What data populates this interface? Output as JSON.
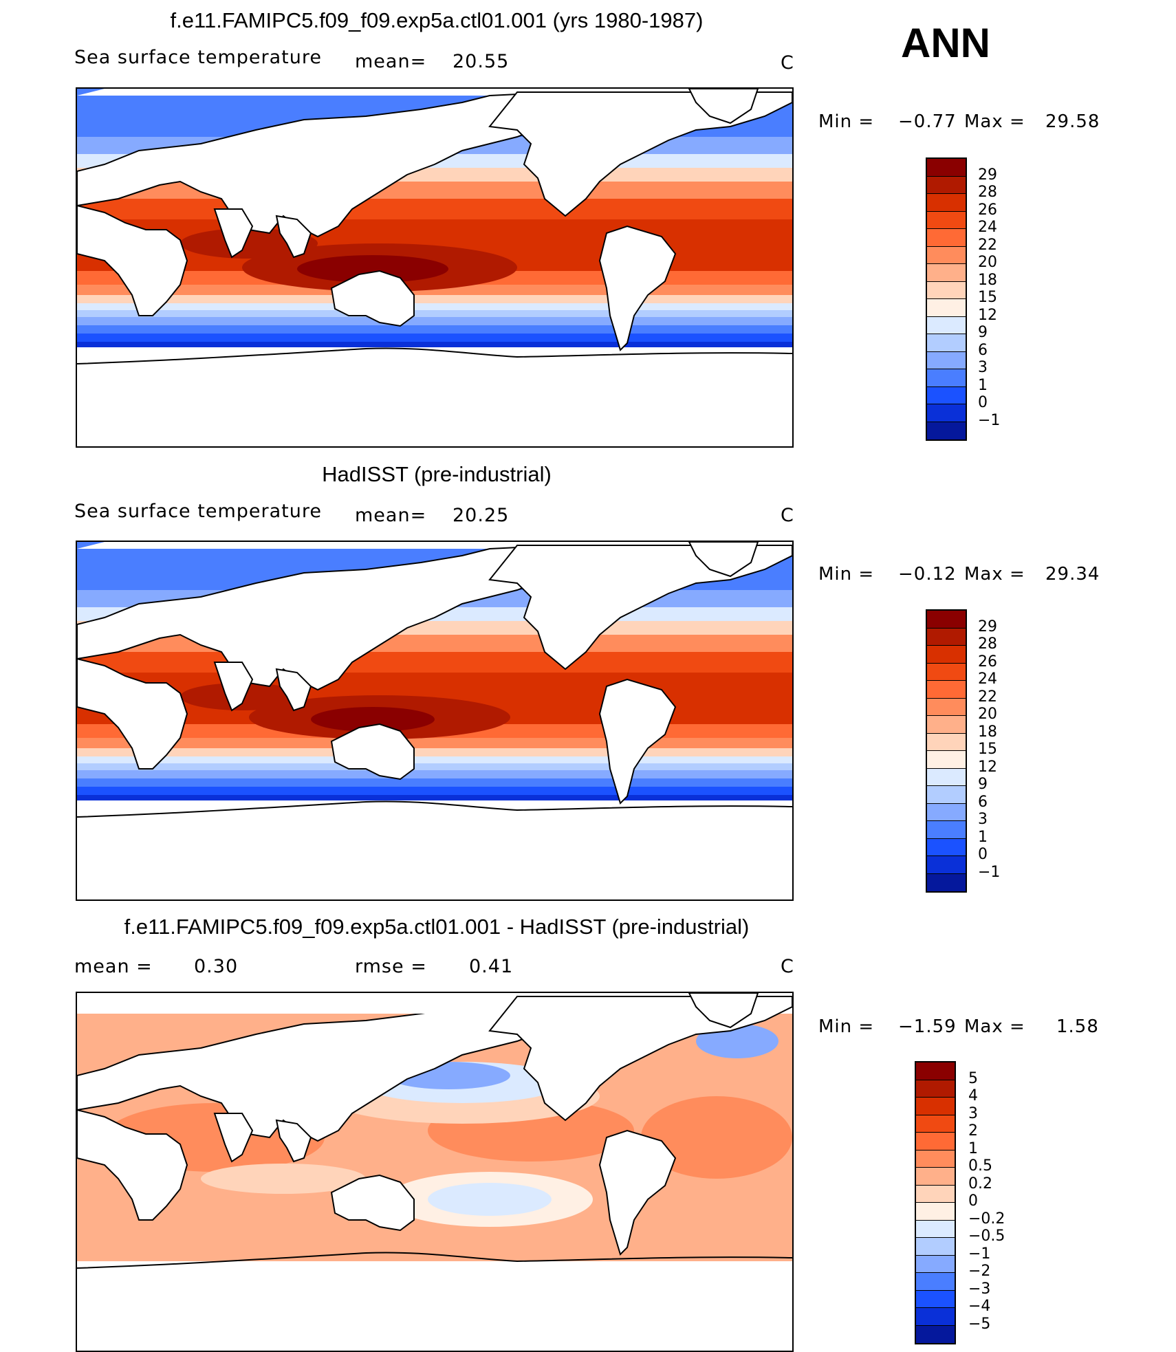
{
  "header": {
    "season": "ANN",
    "units": "C"
  },
  "panels": [
    {
      "title": "f.e11.FAMIPC5.f09_f09.exp5a.ctl01.001 (yrs 1980-1987)",
      "variable": "Sea surface temperature",
      "stat_label": "mean=",
      "stat_value": "20.55",
      "min_label": "Min =",
      "min_value": "−0.77",
      "max_label": "Max =",
      "max_value": "29.58",
      "levels": [
        "29",
        "28",
        "26",
        "24",
        "22",
        "20",
        "18",
        "15",
        "12",
        "9",
        "6",
        "3",
        "1",
        "0",
        "−1"
      ]
    },
    {
      "title": "HadISST (pre-industrial)",
      "variable": "Sea surface temperature",
      "stat_label": "mean=",
      "stat_value": "20.25",
      "min_label": "Min =",
      "min_value": "−0.12",
      "max_label": "Max =",
      "max_value": "29.34",
      "levels": [
        "29",
        "28",
        "26",
        "24",
        "22",
        "20",
        "18",
        "15",
        "12",
        "9",
        "6",
        "3",
        "1",
        "0",
        "−1"
      ]
    },
    {
      "title": "f.e11.FAMIPC5.f09_f09.exp5a.ctl01.001 - HadISST (pre-industrial)",
      "mean_label": "mean =",
      "mean_value": "0.30",
      "rmse_label": "rmse =",
      "rmse_value": "0.41",
      "min_label": "Min =",
      "min_value": "−1.59",
      "max_label": "Max =",
      "max_value": "1.58",
      "levels": [
        "5",
        "4",
        "3",
        "2",
        "1",
        "0.5",
        "0.2",
        "0",
        "−0.2",
        "−0.5",
        "−1",
        "−2",
        "−3",
        "−4",
        "−5"
      ]
    }
  ],
  "colors": {
    "abs_scale": [
      "#8a0000",
      "#b01a00",
      "#d83000",
      "#f04a12",
      "#ff6a35",
      "#ff8c5c",
      "#ffb08a",
      "#ffd4ba",
      "#fff0e4",
      "#dbeaff",
      "#b2cdff",
      "#86aaff",
      "#4a7eff",
      "#1b52ff",
      "#0a30d8",
      "#05189c"
    ],
    "diff_scale": [
      "#8a0000",
      "#b01a00",
      "#d83000",
      "#f04a12",
      "#ff6a35",
      "#ff8c5c",
      "#ffb08a",
      "#ffd4ba",
      "#fff0e4",
      "#dbeaff",
      "#b2cdff",
      "#86aaff",
      "#4a7eff",
      "#1b52ff",
      "#0a30d8",
      "#05189c"
    ],
    "land": "#ffffff"
  }
}
